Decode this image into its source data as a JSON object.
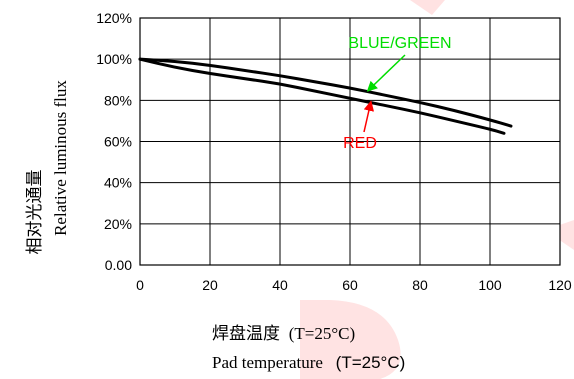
{
  "chart_data": {
    "type": "line",
    "ylabel_cn": "相对光通量",
    "ylabel_en": "Relative luminous flux",
    "xlabel_cn": "焊盘温度",
    "xlabel_cn_unit": "(T=25°C)",
    "xlabel_en": "Pad temperature",
    "xlabel_en_unit": "(T=25°C)",
    "xlim": [
      0,
      120
    ],
    "ylim": [
      0,
      120
    ],
    "x_ticks": [
      0,
      20,
      40,
      60,
      80,
      100,
      120
    ],
    "x_tick_labels": [
      "0",
      "20",
      "40",
      "60",
      "80",
      "100",
      "120"
    ],
    "y_ticks": [
      0,
      20,
      40,
      60,
      80,
      100,
      120
    ],
    "y_tick_labels": [
      "0.00",
      "20%",
      "40%",
      "60%",
      "80%",
      "100%",
      "120%"
    ],
    "grid": true,
    "series": [
      {
        "name": "BLUE/GREEN",
        "color": "#000000",
        "label_color": "#00dd00",
        "x": [
          0,
          10,
          20,
          30,
          40,
          50,
          60,
          70,
          80,
          90,
          100,
          106
        ],
        "y": [
          100,
          99,
          97,
          94.5,
          92,
          89,
          86,
          82.5,
          79,
          75,
          70.5,
          67.5
        ]
      },
      {
        "name": "RED",
        "color": "#000000",
        "label_color": "#ff0000",
        "x": [
          0,
          10,
          20,
          30,
          40,
          50,
          60,
          70,
          80,
          90,
          100,
          104
        ],
        "y": [
          100,
          96,
          93,
          90.5,
          88,
          84.5,
          81,
          77.5,
          74,
          70,
          66,
          64
        ]
      }
    ],
    "annotations": [
      {
        "text": "BLUE/GREEN",
        "color": "#00dd00",
        "series": 0,
        "point_x": 65,
        "point_y": 84.5
      },
      {
        "text": "RED",
        "color": "#ff0000",
        "series": 1,
        "point_x": 66,
        "point_y": 79.5
      }
    ]
  }
}
